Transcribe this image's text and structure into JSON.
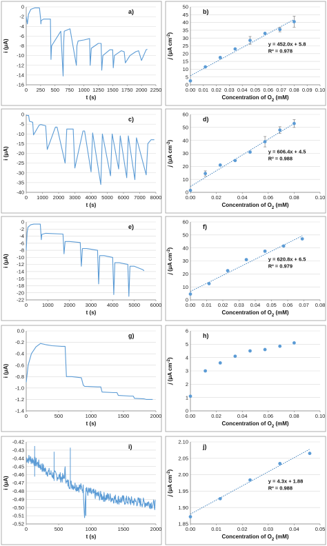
{
  "chart_data": [
    {
      "panel": "a)",
      "type": "line",
      "xlabel": "t (s)",
      "ylabel": "i (μA)",
      "xlim": [
        0,
        2250
      ],
      "ylim": [
        -16,
        0
      ],
      "xticks": [
        0,
        250,
        500,
        750,
        1000,
        1250,
        1500,
        1750,
        2000,
        2250
      ],
      "yticks": [
        0,
        -2,
        -4,
        -6,
        -8,
        -10,
        -12,
        -14,
        -16
      ],
      "series": [
        {
          "color": "#5b9bd5",
          "x": [
            0,
            20,
            40,
            80,
            150,
            230,
            250,
            255,
            260,
            300,
            320,
            420,
            430,
            440,
            600,
            640,
            650,
            660,
            760,
            870,
            880,
            900,
            1000,
            1100,
            1110,
            1130,
            1250,
            1300,
            1310,
            1330,
            1450,
            1500,
            1510,
            1530,
            1650,
            1700,
            1720,
            1800,
            1900,
            1950,
            2000,
            2080,
            2100
          ],
          "y": [
            -2.0,
            -3.5,
            -1.5,
            -0.5,
            -0.2,
            -0.2,
            -2.5,
            -3.5,
            -2.8,
            -2.5,
            -2.5,
            -2.5,
            -10.8,
            -8.0,
            -5.0,
            -14.2,
            -7.5,
            -5.0,
            -4.5,
            -12.0,
            -8.0,
            -7.0,
            -6.8,
            -6.5,
            -12.0,
            -8.5,
            -7.5,
            -7.5,
            -13.0,
            -10.0,
            -8.8,
            -8.8,
            -12.5,
            -10.0,
            -9.0,
            -9.2,
            -11.5,
            -10.0,
            -9.2,
            -9.0,
            -11.0,
            -8.8,
            -8.7
          ]
        }
      ]
    },
    {
      "panel": "b)",
      "type": "scatter",
      "xlabel": "Concentration of O2 (mM)",
      "ylabel": "j (μA cm-2)",
      "xlim": [
        0,
        0.1
      ],
      "ylim": [
        0,
        50
      ],
      "xticks": [
        0,
        0.01,
        0.02,
        0.03,
        0.04,
        0.05,
        0.06,
        0.07,
        0.08,
        0.09,
        0.1
      ],
      "yticks": [
        0,
        5,
        10,
        15,
        20,
        25,
        30,
        35,
        40,
        45,
        50
      ],
      "x": [
        0,
        0.0115,
        0.023,
        0.0345,
        0.046,
        0.0575,
        0.069,
        0.08
      ],
      "y": [
        2.5,
        11.5,
        17.5,
        23,
        28.5,
        33,
        35.5,
        40.5
      ],
      "err": [
        0,
        0,
        0.5,
        0,
        2.5,
        0,
        1.5,
        3.5
      ],
      "trend": {
        "slope": 452.0,
        "intercept": 5.8
      },
      "equation": "y = 452.0x + 5.8",
      "r2": "R² = 0.978"
    },
    {
      "panel": "c)",
      "type": "line",
      "xlabel": "t (s)",
      "ylabel": "i (μA)",
      "xlim": [
        0,
        8000
      ],
      "ylim": [
        -40,
        0
      ],
      "xticks": [
        0,
        1000,
        2000,
        3000,
        4000,
        5000,
        6000,
        7000,
        8000
      ],
      "yticks": [
        0,
        -5,
        -10,
        -15,
        -20,
        -25,
        -30,
        -35,
        -40
      ],
      "series": [
        {
          "color": "#5b9bd5",
          "x": [
            0,
            150,
            200,
            400,
            450,
            800,
            900,
            1200,
            1300,
            1800,
            1900,
            2400,
            2500,
            2900,
            3000,
            3500,
            3600,
            4000,
            4100,
            4600,
            4700,
            5200,
            5300,
            5700,
            5800,
            6200,
            6300,
            6700,
            6800,
            7400,
            7500,
            7700,
            7900
          ],
          "y": [
            -0.5,
            -0.5,
            -3.5,
            -4.0,
            -10.5,
            -5.5,
            -5.2,
            -5.8,
            -18.0,
            -6.5,
            -6.5,
            -25.0,
            -7.5,
            -7.5,
            -27.5,
            -8.5,
            -8.5,
            -29.5,
            -9.5,
            -36.0,
            -10.0,
            -31.5,
            -10.0,
            -28.0,
            -11.0,
            -32.5,
            -11.0,
            -33.5,
            -12.0,
            -31.0,
            -15.0,
            -13.0,
            -13.0
          ]
        }
      ]
    },
    {
      "panel": "d)",
      "type": "scatter",
      "xlabel": "Concentration of O2 (mM)",
      "ylabel": "j (μA cm-2)",
      "xlim": [
        0,
        0.1
      ],
      "ylim": [
        0,
        60
      ],
      "xticks": [
        0,
        0.02,
        0.04,
        0.06,
        0.08,
        0.1
      ],
      "yticks": [
        0,
        10,
        20,
        30,
        40,
        50,
        60
      ],
      "x": [
        0,
        0.0115,
        0.023,
        0.0345,
        0.046,
        0.0575,
        0.069,
        0.08
      ],
      "y": [
        1.5,
        14.5,
        21,
        24.5,
        31,
        39,
        48,
        53
      ],
      "err": [
        0,
        2.0,
        0,
        0,
        0,
        4.0,
        2.5,
        3.0
      ],
      "trend": {
        "slope": 606.4,
        "intercept": 4.5
      },
      "equation": "y = 606.4x + 4.5",
      "r2": "R² = 0.988"
    },
    {
      "panel": "e)",
      "type": "line",
      "xlabel": "t (s)",
      "ylabel": "i (μA)",
      "xlim": [
        0,
        6000
      ],
      "ylim": [
        -22,
        0
      ],
      "xticks": [
        0,
        1000,
        2000,
        3000,
        4000,
        5000,
        6000
      ],
      "yticks": [
        0,
        -2,
        -4,
        -6,
        -8,
        -10,
        -12,
        -14,
        -16,
        -18,
        -20,
        -22
      ],
      "series": [
        {
          "color": "#5b9bd5",
          "x": [
            0,
            40,
            80,
            200,
            350,
            650,
            700,
            720,
            900,
            1700,
            1750,
            1800,
            2000,
            2500,
            2550,
            2600,
            2800,
            3300,
            3350,
            3400,
            3600,
            4000,
            4050,
            4100,
            4300,
            4700,
            4750,
            4800,
            5000,
            5400,
            5450
          ],
          "y": [
            -8.0,
            -3.0,
            -1.5,
            -0.8,
            -0.6,
            -0.6,
            -5.0,
            -3.5,
            -3.2,
            -3.4,
            -9.0,
            -5.5,
            -5.5,
            -5.8,
            -12.5,
            -7.5,
            -7.5,
            -8.0,
            -17.5,
            -9.5,
            -9.5,
            -10.0,
            -20.5,
            -11.5,
            -11.5,
            -12.0,
            -21.0,
            -12.5,
            -12.5,
            -13.5,
            -13.8
          ]
        }
      ]
    },
    {
      "panel": "f)",
      "type": "scatter",
      "xlabel": "Concentration of O2 (mM)",
      "ylabel": "j (μA cm-2)",
      "xlim": [
        0,
        0.08
      ],
      "ylim": [
        0,
        60
      ],
      "xticks": [
        0,
        0.01,
        0.02,
        0.03,
        0.04,
        0.05,
        0.06,
        0.07,
        0.08
      ],
      "yticks": [
        0,
        10,
        20,
        30,
        40,
        50,
        60
      ],
      "x": [
        0,
        0.0115,
        0.023,
        0.0345,
        0.046,
        0.0575,
        0.069
      ],
      "y": [
        4.5,
        12.5,
        22.5,
        31,
        37.5,
        41.5,
        47
      ],
      "err": [
        0,
        0,
        0,
        0,
        0,
        0,
        0
      ],
      "trend": {
        "slope": 620.8,
        "intercept": 6.5
      },
      "equation": "y = 620.8x + 6.5",
      "r2": "R² = 0.979"
    },
    {
      "panel": "g)",
      "type": "line",
      "xlabel": "t (s)",
      "ylabel": "i (μA)",
      "xlim": [
        0,
        2000
      ],
      "ylim": [
        -1.4,
        0
      ],
      "xticks": [
        0,
        500,
        1000,
        1500,
        2000
      ],
      "yticks": [
        0,
        -0.2,
        -0.4,
        -0.6,
        -0.8,
        -1.0,
        -1.2,
        -1.4
      ],
      "series": [
        {
          "color": "#5b9bd5",
          "x": [
            0,
            30,
            80,
            150,
            220,
            300,
            400,
            550,
            600,
            620,
            700,
            850,
            880,
            900,
            1100,
            1150,
            1170,
            1350,
            1400,
            1420,
            1600,
            1650,
            1670,
            1820,
            1850,
            1950
          ],
          "y": [
            -0.9,
            -0.6,
            -0.4,
            -0.28,
            -0.22,
            -0.24,
            -0.26,
            -0.27,
            -0.27,
            -0.8,
            -0.8,
            -0.82,
            -0.95,
            -0.97,
            -0.98,
            -0.98,
            -1.07,
            -1.08,
            -1.08,
            -1.13,
            -1.14,
            -1.14,
            -1.18,
            -1.19,
            -1.2,
            -1.2
          ]
        }
      ]
    },
    {
      "panel": "h)",
      "type": "scatter",
      "xlabel": "Concentration of O2 (mM)",
      "ylabel": "j (μA cm-2)",
      "xlim": [
        0,
        0.1
      ],
      "ylim": [
        0,
        6
      ],
      "xticks": [
        0,
        0.02,
        0.04,
        0.06,
        0.08,
        0.1
      ],
      "yticks": [
        0,
        1,
        2,
        3,
        4,
        5,
        6
      ],
      "x": [
        0,
        0.0115,
        0.023,
        0.0345,
        0.046,
        0.0575,
        0.069,
        0.08
      ],
      "y": [
        1.1,
        3.0,
        3.6,
        4.1,
        4.5,
        4.6,
        4.85,
        5.1
      ],
      "err": [
        0,
        0,
        0,
        0,
        0,
        0,
        0,
        0
      ]
    },
    {
      "panel": "i)",
      "type": "line",
      "xlabel": "t (s)",
      "ylabel": "i (μA)",
      "xlim": [
        0,
        2000
      ],
      "ylim": [
        -0.52,
        -0.42
      ],
      "xticks": [
        0,
        500,
        1000,
        1500,
        2000
      ],
      "yticks": [
        -0.42,
        -0.43,
        -0.44,
        -0.45,
        -0.46,
        -0.47,
        -0.48,
        -0.49,
        -0.5,
        -0.51,
        -0.52
      ],
      "series": [
        {
          "color": "#5b9bd5",
          "noisy": true,
          "x": [
            0,
            100,
            200,
            300,
            400,
            500,
            580,
            600,
            620,
            700,
            800,
            880,
            900,
            920,
            1000,
            1100,
            1200,
            1300,
            1400,
            1500,
            1600,
            1700,
            1800,
            1900,
            2000
          ],
          "y": [
            -0.44,
            -0.442,
            -0.448,
            -0.455,
            -0.46,
            -0.462,
            -0.465,
            -0.455,
            -0.47,
            -0.472,
            -0.475,
            -0.477,
            -0.51,
            -0.48,
            -0.482,
            -0.485,
            -0.487,
            -0.488,
            -0.49,
            -0.491,
            -0.492,
            -0.493,
            -0.494,
            -0.495,
            -0.497
          ]
        }
      ],
      "spikes": [
        [
          130,
          -0.425
        ],
        [
          430,
          -0.432
        ],
        [
          680,
          -0.427
        ],
        [
          920,
          -0.51
        ]
      ]
    },
    {
      "panel": "j)",
      "type": "scatter",
      "xlabel": "Concentration of O2 (mM)",
      "ylabel": "j (μA cm-2)",
      "xlim": [
        0,
        0.05
      ],
      "ylim": [
        1.85,
        2.1
      ],
      "xticks": [
        0,
        0.01,
        0.02,
        0.03,
        0.04,
        0.05
      ],
      "yticks": [
        1.85,
        1.9,
        1.95,
        2.0,
        2.05,
        2.1
      ],
      "ytickfmt": 2,
      "x": [
        0,
        0.0115,
        0.023,
        0.0345,
        0.046
      ],
      "y": [
        1.872,
        1.927,
        1.984,
        2.034,
        2.065
      ],
      "err": [
        0,
        0,
        0,
        0,
        0
      ],
      "trend": {
        "slope": 4.3,
        "intercept": 1.88
      },
      "equation": "y = 4.3x + 1.88",
      "r2": "R² = 0.988"
    }
  ]
}
